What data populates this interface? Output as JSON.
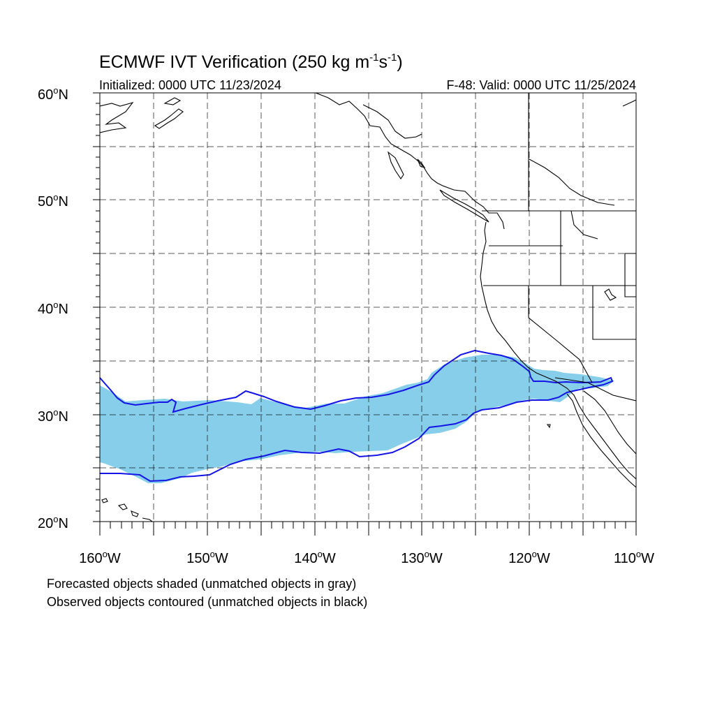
{
  "title_main": "ECMWF IVT Verification (250 kg m",
  "title_exp1": "-1",
  "title_mid": "s",
  "title_exp2": "-1",
  "title_end": ")",
  "initialized": "Initialized: 0000 UTC 11/23/2024",
  "valid": "F-48: Valid: 0000 UTC 11/25/2024",
  "map": {
    "lon_range": [
      -160,
      -110
    ],
    "lat_range": [
      20,
      60
    ],
    "lon_ticks": [
      {
        "num": "160",
        "hemi": "W"
      },
      {
        "num": "150",
        "hemi": "W"
      },
      {
        "num": "140",
        "hemi": "W"
      },
      {
        "num": "130",
        "hemi": "W"
      },
      {
        "num": "120",
        "hemi": "W"
      },
      {
        "num": "110",
        "hemi": "W"
      }
    ],
    "lat_ticks": [
      {
        "num": "60",
        "hemi": "N"
      },
      {
        "num": "50",
        "hemi": "N"
      },
      {
        "num": "40",
        "hemi": "N"
      },
      {
        "num": "30",
        "hemi": "N"
      },
      {
        "num": "20",
        "hemi": "N"
      }
    ],
    "forecast_color": "#87ceea",
    "observed_color": "#1414e6",
    "objects": [
      {
        "type": "forecasted",
        "status": "matched"
      },
      {
        "type": "observed",
        "status": "matched"
      }
    ]
  },
  "footnotes": [
    "Forecasted objects shaded (unmatched objects in gray)",
    "Observed objects contoured (unmatched objects in black)"
  ]
}
